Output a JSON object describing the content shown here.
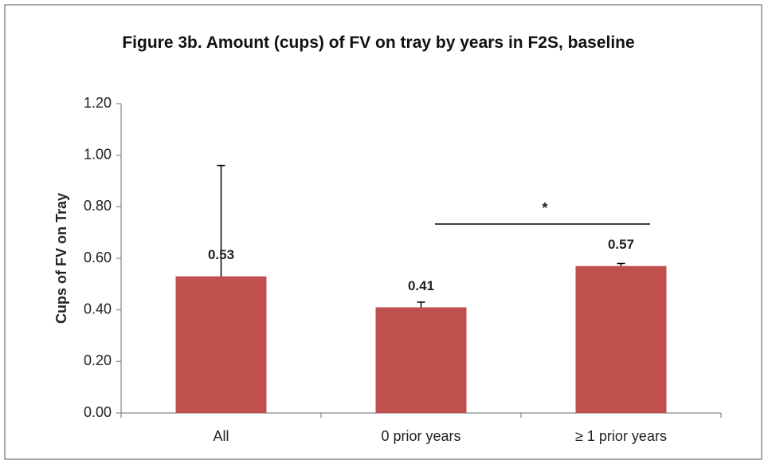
{
  "chart_data": {
    "type": "bar",
    "title": "Figure 3b. Amount (cups) of FV on tray by years in F2S, baseline",
    "ylabel": "Cups of FV on Tray",
    "categories": [
      "All",
      "0 prior years",
      "≥ 1 prior years"
    ],
    "values": [
      0.53,
      0.41,
      0.57
    ],
    "errors": [
      0.43,
      0.02,
      0.01
    ],
    "color": "#c0504d",
    "ylim": [
      0,
      1.2
    ],
    "yticks": [
      {
        "value": 0,
        "label": "0.00"
      },
      {
        "value": 0.2,
        "label": "0.20"
      },
      {
        "value": 0.4,
        "label": "0.40"
      },
      {
        "value": 0.6,
        "label": "0.60"
      },
      {
        "value": 0.8,
        "label": "0.80"
      },
      {
        "value": 1,
        "label": "1.00"
      },
      {
        "value": 1.2,
        "label": "1.20"
      }
    ],
    "annotations": [
      "*"
    ]
  }
}
